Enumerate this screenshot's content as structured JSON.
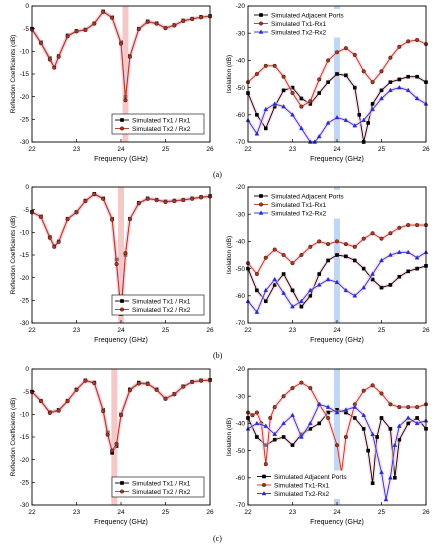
{
  "captions": [
    "(a)",
    "(b)",
    "(c)"
  ],
  "colors": {
    "black": "#000000",
    "red": "#b5351a",
    "blue": "#1f2fd6",
    "highlight_red": "#f2b6b6",
    "highlight_blue": "#a9c8f2",
    "halo": "#f6c9d8"
  },
  "chart_data": [
    {
      "id": "a-left",
      "type": "line",
      "xlabel": "Frequency (GHz)",
      "ylabel": "Reflection Coefficients (dB)",
      "xlim": [
        22,
        26
      ],
      "ylim": [
        -30,
        0
      ],
      "xticks": [
        "22",
        "23",
        "24",
        "25",
        "26"
      ],
      "yticks": [
        "0",
        "-5",
        "-10",
        "-15",
        "-20",
        "-25",
        "-30"
      ],
      "highlight": {
        "x": 24.1,
        "color": "red"
      },
      "legend_position": "bottom-right",
      "series": [
        {
          "name": "Simulated Tx1 / Rx1",
          "color": "black",
          "marker": "square",
          "x": [
            22,
            22.2,
            22.4,
            22.5,
            22.6,
            22.8,
            23.0,
            23.2,
            23.4,
            23.6,
            23.8,
            24.0,
            24.1,
            24.2,
            24.4,
            24.6,
            24.8,
            25.0,
            25.2,
            25.4,
            25.6,
            25.8,
            26.0
          ],
          "y": [
            -5,
            -8,
            -11.5,
            -13.5,
            -11,
            -6.5,
            -5.5,
            -5.2,
            -3.8,
            -1.2,
            -2.5,
            -8,
            -20,
            -11,
            -5,
            -3.4,
            -3.8,
            -4.8,
            -4.2,
            -3.2,
            -2.8,
            -2.4,
            -2.2
          ]
        },
        {
          "name": "Simulated Tx2 / Rx2",
          "color": "red",
          "marker": "circle",
          "x": [
            22,
            22.2,
            22.4,
            22.5,
            22.6,
            22.8,
            23.0,
            23.2,
            23.4,
            23.6,
            23.8,
            24.0,
            24.1,
            24.2,
            24.4,
            24.6,
            24.8,
            25.0,
            25.2,
            25.4,
            25.6,
            25.8,
            26.0
          ],
          "y": [
            -5.2,
            -8.2,
            -11.8,
            -13.6,
            -11.2,
            -6.7,
            -5.6,
            -5.3,
            -3.9,
            -1.3,
            -2.6,
            -8.3,
            -20.8,
            -11.2,
            -5.1,
            -3.5,
            -3.9,
            -4.9,
            -4.3,
            -3.3,
            -2.9,
            -2.5,
            -2.3
          ]
        }
      ]
    },
    {
      "id": "a-right",
      "type": "line",
      "xlabel": "Frequency (GHz)",
      "ylabel": "Isolation (dB)",
      "xlim": [
        22,
        26
      ],
      "ylim": [
        -70,
        -20
      ],
      "xticks": [
        "22",
        "23",
        "24",
        "25",
        "26"
      ],
      "yticks": [
        "-20",
        "-30",
        "-40",
        "-50",
        "-60",
        "-70"
      ],
      "highlight": {
        "x": 24.0,
        "color": "blue"
      },
      "legend_position": "top-left",
      "series": [
        {
          "name": "Simulated Adjacent Ports",
          "color": "black",
          "marker": "square",
          "x": [
            22,
            22.2,
            22.4,
            22.6,
            22.8,
            23.0,
            23.2,
            23.4,
            23.6,
            23.8,
            24.0,
            24.2,
            24.4,
            24.5,
            24.6,
            24.7,
            24.8,
            25.0,
            25.2,
            25.4,
            25.6,
            25.8,
            26.0
          ],
          "y": [
            -52,
            -60,
            -65,
            -57,
            -51,
            -50,
            -54,
            -56,
            -52,
            -48,
            -45,
            -45.5,
            -50,
            -60,
            -70,
            -63,
            -56,
            -51,
            -48,
            -47,
            -46,
            -46,
            -48
          ]
        },
        {
          "name": "Simulated Tx1-Rx1",
          "color": "red",
          "marker": "circle",
          "x": [
            22,
            22.2,
            22.4,
            22.6,
            22.8,
            23.0,
            23.2,
            23.4,
            23.6,
            23.8,
            24.0,
            24.2,
            24.4,
            24.6,
            24.8,
            25.0,
            25.2,
            25.4,
            25.6,
            25.8,
            26.0
          ],
          "y": [
            -48,
            -45,
            -42,
            -42,
            -46,
            -52,
            -57,
            -55,
            -47,
            -40,
            -37,
            -35.5,
            -38,
            -44,
            -48,
            -44,
            -39,
            -35,
            -33,
            -32.5,
            -34
          ]
        },
        {
          "name": "Simulated Tx2-Rx2",
          "color": "blue",
          "marker": "triangle",
          "x": [
            22,
            22.2,
            22.4,
            22.6,
            22.8,
            23.0,
            23.2,
            23.4,
            23.5,
            23.6,
            23.8,
            24.0,
            24.2,
            24.4,
            24.6,
            24.8,
            25.0,
            25.2,
            25.4,
            25.6,
            25.8,
            26.0
          ],
          "y": [
            -62,
            -67,
            -58,
            -56,
            -57,
            -60,
            -65,
            -70,
            -70,
            -68,
            -63,
            -61,
            -62,
            -64,
            -62,
            -58,
            -54,
            -51,
            -50,
            -51,
            -54,
            -56
          ]
        }
      ]
    },
    {
      "id": "b-left",
      "type": "line",
      "xlabel": "Frequency (GHz)",
      "ylabel": "Reflection Coefficients (dB)",
      "xlim": [
        22,
        26
      ],
      "ylim": [
        -30,
        0
      ],
      "xticks": [
        "22",
        "23",
        "24",
        "25",
        "26"
      ],
      "yticks": [
        "0",
        "-5",
        "-10",
        "-15",
        "-20",
        "-25",
        "-30"
      ],
      "highlight": {
        "x": 24.0,
        "color": "red"
      },
      "legend_position": "bottom-right",
      "series": [
        {
          "name": "Simulated Tx1 / Rx1",
          "color": "black",
          "marker": "square",
          "x": [
            22,
            22.2,
            22.4,
            22.5,
            22.6,
            22.8,
            23.0,
            23.2,
            23.4,
            23.6,
            23.8,
            23.9,
            24.0,
            24.1,
            24.2,
            24.4,
            24.6,
            24.8,
            25.0,
            25.2,
            25.4,
            25.6,
            25.8,
            26.0
          ],
          "y": [
            -5.5,
            -6.5,
            -11,
            -13,
            -12,
            -7,
            -5.5,
            -3,
            -1.5,
            -2.5,
            -7,
            -16,
            -28,
            -15,
            -7,
            -3.5,
            -2.5,
            -2.8,
            -3.2,
            -3,
            -2.8,
            -2.5,
            -2.2,
            -2
          ]
        },
        {
          "name": "Simulated Tx2 / Rx2",
          "color": "red",
          "marker": "circle",
          "x": [
            22,
            22.2,
            22.4,
            22.5,
            22.6,
            22.8,
            23.0,
            23.2,
            23.4,
            23.6,
            23.8,
            23.9,
            24.0,
            24.1,
            24.2,
            24.4,
            24.6,
            24.8,
            25.0,
            25.2,
            25.4,
            25.6,
            25.8,
            26.0
          ],
          "y": [
            -5.6,
            -6.6,
            -11.2,
            -13.2,
            -12.1,
            -7.1,
            -5.6,
            -3.1,
            -1.6,
            -2.6,
            -7.2,
            -17,
            -27,
            -14.6,
            -7.1,
            -3.6,
            -2.6,
            -2.9,
            -3.3,
            -3.1,
            -2.9,
            -2.6,
            -2.3,
            -2.1
          ]
        }
      ]
    },
    {
      "id": "b-right",
      "type": "line",
      "xlabel": "Frequency (GHz)",
      "ylabel": "Isolation (dB)",
      "xlim": [
        22,
        26
      ],
      "ylim": [
        -70,
        -20
      ],
      "xticks": [
        "22",
        "23",
        "24",
        "25",
        "26"
      ],
      "yticks": [
        "-20",
        "-30",
        "-40",
        "-50",
        "-60",
        "-70"
      ],
      "highlight": {
        "x": 24.0,
        "color": "blue"
      },
      "legend_position": "top-left",
      "series": [
        {
          "name": "Simulated Adjacent Ports",
          "color": "black",
          "marker": "square",
          "x": [
            22,
            22.2,
            22.4,
            22.6,
            22.8,
            23.0,
            23.2,
            23.4,
            23.6,
            23.8,
            24.0,
            24.2,
            24.4,
            24.6,
            24.8,
            25.0,
            25.2,
            25.4,
            25.6,
            25.8,
            26.0
          ],
          "y": [
            -50,
            -58,
            -62,
            -56,
            -52,
            -58,
            -64,
            -60,
            -52,
            -47,
            -45,
            -45.5,
            -47,
            -50,
            -54,
            -57,
            -56,
            -53,
            -51,
            -50,
            -49
          ]
        },
        {
          "name": "Simulated Tx1-Rx1",
          "color": "red",
          "marker": "circle",
          "x": [
            22,
            22.2,
            22.4,
            22.6,
            22.8,
            23.0,
            23.2,
            23.4,
            23.6,
            23.8,
            24.0,
            24.2,
            24.4,
            24.6,
            24.8,
            25.0,
            25.2,
            25.4,
            25.6,
            25.8,
            26.0
          ],
          "y": [
            -48,
            -52,
            -46,
            -43,
            -45,
            -48,
            -45,
            -42,
            -40,
            -41,
            -40,
            -41,
            -42,
            -39,
            -37,
            -39,
            -37,
            -35,
            -34,
            -34,
            -34
          ]
        },
        {
          "name": "Simulated Tx2-Rx2",
          "color": "blue",
          "marker": "triangle",
          "x": [
            22,
            22.2,
            22.4,
            22.6,
            22.8,
            23.0,
            23.2,
            23.4,
            23.6,
            23.8,
            24.0,
            24.2,
            24.4,
            24.6,
            24.8,
            25.0,
            25.2,
            25.4,
            25.6,
            25.8,
            26.0
          ],
          "y": [
            -62,
            -66,
            -58,
            -54,
            -59,
            -64,
            -62,
            -58,
            -56,
            -54,
            -55,
            -58,
            -60,
            -57,
            -52,
            -47,
            -45,
            -44,
            -44,
            -46,
            -44
          ]
        }
      ]
    },
    {
      "id": "c-left",
      "type": "line",
      "xlabel": "Frequency (GHz)",
      "ylabel": "Reflection Coefficients (dB)",
      "xlim": [
        22,
        26
      ],
      "ylim": [
        -30,
        0
      ],
      "xticks": [
        "22",
        "23",
        "24",
        "25",
        "26"
      ],
      "yticks": [
        "0",
        "-5",
        "-10",
        "-15",
        "-20",
        "-25",
        "-30"
      ],
      "highlight": {
        "x": 23.85,
        "color": "red"
      },
      "legend_position": "bottom-right",
      "series": [
        {
          "name": "Simulated Tx1 / Rx1",
          "color": "black",
          "marker": "square",
          "x": [
            22,
            22.2,
            22.4,
            22.6,
            22.8,
            23.0,
            23.2,
            23.4,
            23.6,
            23.7,
            23.8,
            23.9,
            24.0,
            24.2,
            24.4,
            24.6,
            24.8,
            25.0,
            25.2,
            25.4,
            25.6,
            25.8,
            26.0
          ],
          "y": [
            -5,
            -7,
            -9.5,
            -9,
            -7,
            -4.5,
            -2.5,
            -3,
            -9,
            -14,
            -18.5,
            -17,
            -10,
            -4.5,
            -3,
            -3.2,
            -4.5,
            -6.5,
            -5.5,
            -3.8,
            -2.8,
            -2.5,
            -2.4
          ]
        },
        {
          "name": "Simulated Tx2 / Rx2",
          "color": "red",
          "marker": "circle",
          "x": [
            22,
            22.2,
            22.4,
            22.6,
            22.8,
            23.0,
            23.2,
            23.4,
            23.6,
            23.7,
            23.8,
            23.9,
            24.0,
            24.2,
            24.4,
            24.6,
            24.8,
            25.0,
            25.2,
            25.4,
            25.6,
            25.8,
            26.0
          ],
          "y": [
            -5.1,
            -7.1,
            -9.7,
            -9.2,
            -7.1,
            -4.6,
            -2.6,
            -3.1,
            -9.3,
            -14.5,
            -18,
            -16.5,
            -10.2,
            -4.7,
            -3.2,
            -3.3,
            -4.6,
            -6.6,
            -5.6,
            -3.9,
            -2.9,
            -2.6,
            -2.5
          ]
        }
      ]
    },
    {
      "id": "c-right",
      "type": "line",
      "xlabel": "Frequency (GHz)",
      "ylabel": "Isolation (dB)",
      "xlim": [
        22,
        26
      ],
      "ylim": [
        -70,
        -20
      ],
      "xticks": [
        "22",
        "23",
        "24",
        "25",
        "26"
      ],
      "yticks": [
        "-20",
        "-30",
        "-40",
        "-50",
        "-60",
        "-70"
      ],
      "highlight": {
        "x": 24.0,
        "color": "blue"
      },
      "legend_position": "bottom-left",
      "series": [
        {
          "name": "Simulated Adjacent Ports",
          "color": "black",
          "marker": "square",
          "x": [
            22,
            22.2,
            22.4,
            22.6,
            22.8,
            23.0,
            23.2,
            23.4,
            23.6,
            23.8,
            24.0,
            24.2,
            24.4,
            24.6,
            24.7,
            24.8,
            24.9,
            25.0,
            25.2,
            25.3,
            25.4,
            25.6,
            25.8,
            26.0
          ],
          "y": [
            -38,
            -45,
            -48,
            -46,
            -45,
            -48,
            -44,
            -42,
            -40,
            -36,
            -35,
            -36,
            -38,
            -42,
            -50,
            -62,
            -45,
            -38,
            -42,
            -60,
            -46,
            -40,
            -38,
            -42
          ]
        },
        {
          "name": "Simulated Tx1-Rx1",
          "color": "red",
          "marker": "circle",
          "x": [
            22,
            22.1,
            22.2,
            22.3,
            22.4,
            22.5,
            22.6,
            22.8,
            23.0,
            23.2,
            23.4,
            23.6,
            23.8,
            24.0,
            24.1,
            24.2,
            24.4,
            24.6,
            24.8,
            25.0,
            25.2,
            25.4,
            25.6,
            25.8,
            26.0
          ],
          "y": [
            -36,
            -37,
            -36,
            -40,
            -55,
            -38,
            -34,
            -30,
            -27,
            -25,
            -27,
            -33,
            -38,
            -48,
            -58,
            -45,
            -33,
            -28,
            -26,
            -29,
            -33,
            -34,
            -34,
            -34,
            -33
          ]
        },
        {
          "name": "Simulated Tx2-Rx2",
          "color": "blue",
          "marker": "triangle",
          "x": [
            22,
            22.2,
            22.4,
            22.6,
            22.8,
            23.0,
            23.2,
            23.4,
            23.6,
            23.8,
            24.0,
            24.2,
            24.4,
            24.6,
            24.8,
            25.0,
            25.1,
            25.2,
            25.3,
            25.4,
            25.6,
            25.8,
            26.0
          ],
          "y": [
            -42,
            -40,
            -41,
            -44,
            -40,
            -37,
            -45,
            -40,
            -33,
            -34,
            -36,
            -35,
            -34,
            -37,
            -44,
            -58,
            -68,
            -60,
            -48,
            -41,
            -38,
            -40,
            -39
          ]
        }
      ]
    }
  ]
}
